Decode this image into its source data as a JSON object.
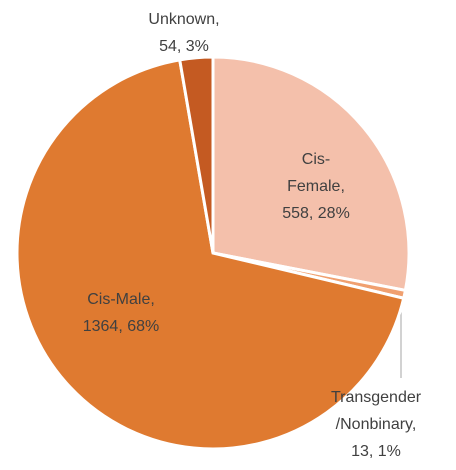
{
  "chart_data": {
    "type": "pie",
    "values": [
      558,
      13,
      1364,
      54
    ],
    "value_labels": [
      [
        "Cis-",
        "Female,",
        "558, 28%"
      ],
      [
        "Transgender",
        "/Nonbinary,",
        "13, 1%"
      ],
      [
        "Cis-Male,",
        "1364, 68%"
      ],
      [
        "Unknown,",
        "54, 3%"
      ]
    ],
    "colors": [
      "#f4c0ab",
      "#f0a070",
      "#df7a30",
      "#c45a22"
    ]
  }
}
